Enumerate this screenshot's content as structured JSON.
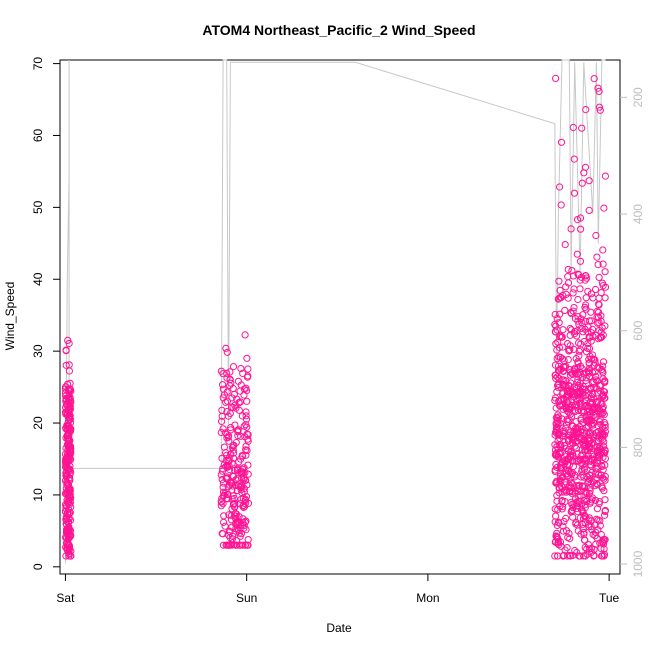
{
  "chart_data": {
    "type": "scatter",
    "title": "ATOM4 Northeast_Pacific_2 Wind_Speed",
    "xlabel": "Date",
    "ylabel": "Wind_Speed",
    "x_ticks": [
      "Sat",
      "Sun",
      "Mon",
      "Tue"
    ],
    "x_range_days": [
      -0.03,
      3.06
    ],
    "y_ticks": [
      0,
      10,
      20,
      30,
      40,
      50,
      60,
      70
    ],
    "ylim": [
      -1,
      70.5
    ],
    "right_axis": {
      "ticks": [
        200,
        400,
        600,
        800,
        1000
      ],
      "range_inverted": [
        136,
        1017
      ]
    },
    "colors": {
      "points": "#ff1493",
      "line": "#c8c8c8"
    },
    "series": [
      {
        "name": "",
        "style": "open-circle",
        "groups": [
          {
            "day_start": 0.0,
            "day_end": 0.03,
            "min": 1.5,
            "max": 31.5,
            "center": 12,
            "note": ""
          },
          {
            "day_start": 0.86,
            "day_end": 1.01,
            "min": 3.0,
            "max": 33.5,
            "center": 11,
            "note": ""
          },
          {
            "day_start": 2.7,
            "day_end": 2.98,
            "min": 1.5,
            "max": 68.0,
            "center": 18,
            "note": ""
          }
        ]
      }
    ],
    "line_series": [
      [
        0.0,
        999
      ],
      [
        0.01,
        520
      ],
      [
        0.02,
        330
      ],
      [
        0.02,
        135
      ],
      [
        0.02,
        836
      ],
      [
        0.86,
        836
      ],
      [
        0.86,
        770
      ],
      [
        0.87,
        130
      ],
      [
        0.89,
        130
      ],
      [
        0.9,
        760
      ],
      [
        0.91,
        140
      ],
      [
        1.6,
        140
      ],
      [
        2.7,
        245
      ],
      [
        2.71,
        650
      ],
      [
        2.72,
        400
      ],
      [
        2.74,
        130
      ],
      [
        2.78,
        130
      ],
      [
        2.79,
        500
      ],
      [
        2.81,
        140
      ],
      [
        2.84,
        500
      ],
      [
        2.86,
        140
      ],
      [
        2.91,
        400
      ],
      [
        2.93,
        140
      ],
      [
        2.94,
        450
      ],
      [
        2.96,
        135
      ],
      [
        2.98,
        130
      ]
    ]
  }
}
